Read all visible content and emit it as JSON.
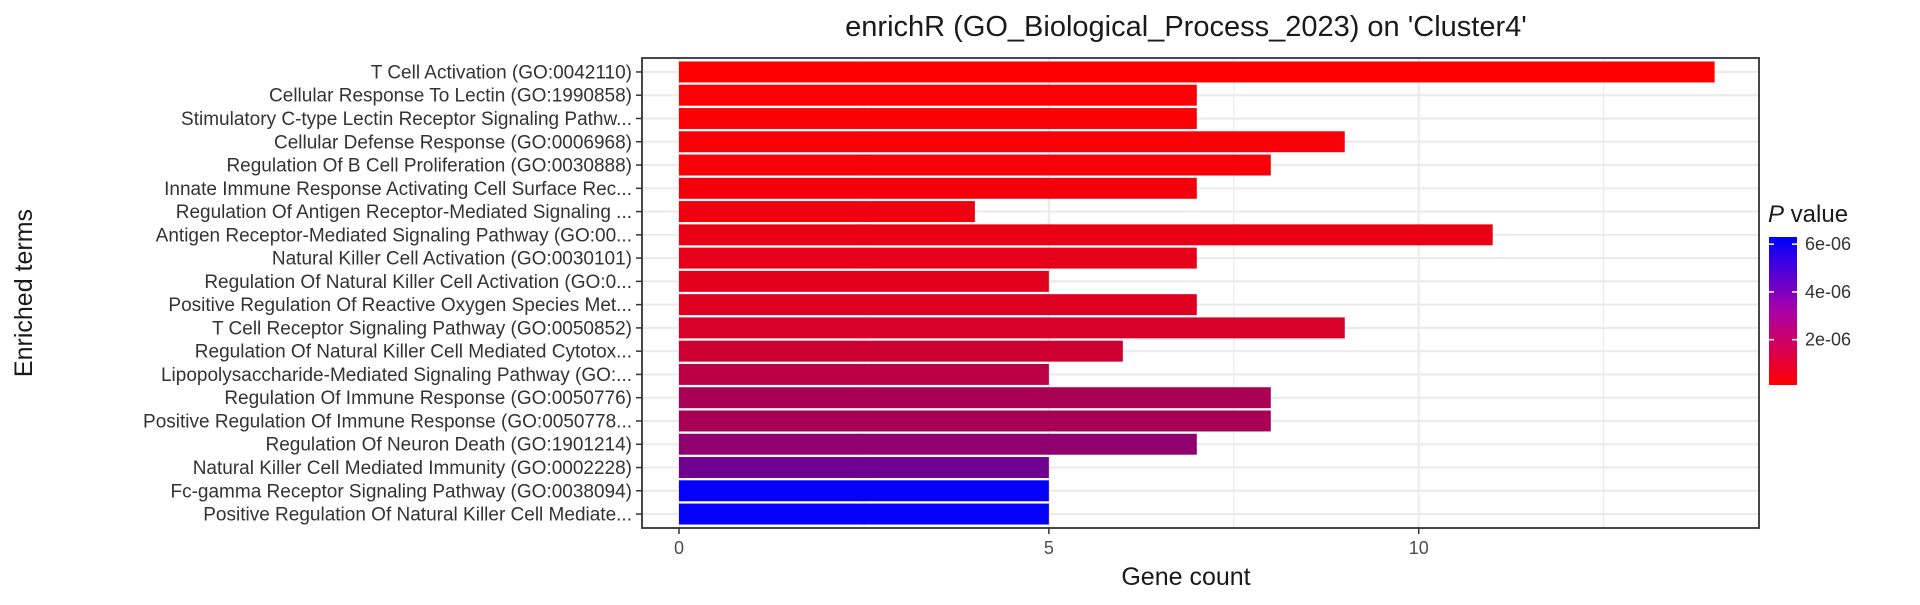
{
  "chart_data": {
    "type": "bar",
    "orientation": "horizontal",
    "title": "enrichR (GO_Biological_Process_2023) on 'Cluster4'",
    "xlabel": "Gene count",
    "ylabel": "Enriched terms",
    "xlim": [
      -0.5,
      14.6
    ],
    "xticks": [
      0,
      5,
      10
    ],
    "grid": true,
    "legend": {
      "title_italic": "P",
      "title_rest": " value",
      "position": "right",
      "ticks": [
        {
          "label": "6e-06",
          "value": 6e-06
        },
        {
          "label": "4e-06",
          "value": 4e-06
        },
        {
          "label": "2e-06",
          "value": 2e-06
        }
      ],
      "range": [
        1e-07,
        6.3e-06
      ],
      "low_color": "#ff0000",
      "high_color": "#0000ff"
    },
    "categories": [
      "T Cell Activation (GO:0042110)",
      "Cellular Response To Lectin (GO:1990858)",
      "Stimulatory C-type Lectin Receptor Signaling Pathw...",
      "Cellular Defense Response (GO:0006968)",
      "Regulation Of B Cell Proliferation (GO:0030888)",
      "Innate Immune Response Activating Cell Surface Rec...",
      "Regulation Of Antigen Receptor-Mediated Signaling ...",
      "Antigen Receptor-Mediated Signaling Pathway (GO:00...",
      "Natural Killer Cell Activation (GO:0030101)",
      "Regulation Of Natural Killer Cell Activation (GO:0...",
      "Positive Regulation Of Reactive Oxygen Species Met...",
      "T Cell Receptor Signaling Pathway (GO:0050852)",
      "Regulation Of Natural Killer Cell Mediated Cytotox...",
      "Lipopolysaccharide-Mediated Signaling Pathway (GO:...",
      "Regulation Of Immune Response (GO:0050776)",
      "Positive Regulation Of Immune Response (GO:0050778...",
      "Regulation Of Neuron Death (GO:1901214)",
      "Natural Killer Cell Mediated Immunity (GO:0002228)",
      "Fc-gamma Receptor Signaling Pathway (GO:0038094)",
      "Positive Regulation Of Natural Killer Cell Mediate..."
    ],
    "values": [
      14,
      7,
      7,
      9,
      8,
      7,
      4,
      11,
      7,
      5,
      7,
      9,
      6,
      5,
      8,
      8,
      7,
      5,
      5,
      5
    ],
    "pvalues": [
      1e-07,
      2e-07,
      2e-07,
      3e-07,
      3e-07,
      4e-07,
      5e-07,
      6e-07,
      7e-07,
      8e-07,
      9e-07,
      1.1e-06,
      1.3e-06,
      1.7e-06,
      2.2e-06,
      2.2e-06,
      2.8e-06,
      3.6e-06,
      6.2e-06,
      6.2e-06
    ]
  }
}
